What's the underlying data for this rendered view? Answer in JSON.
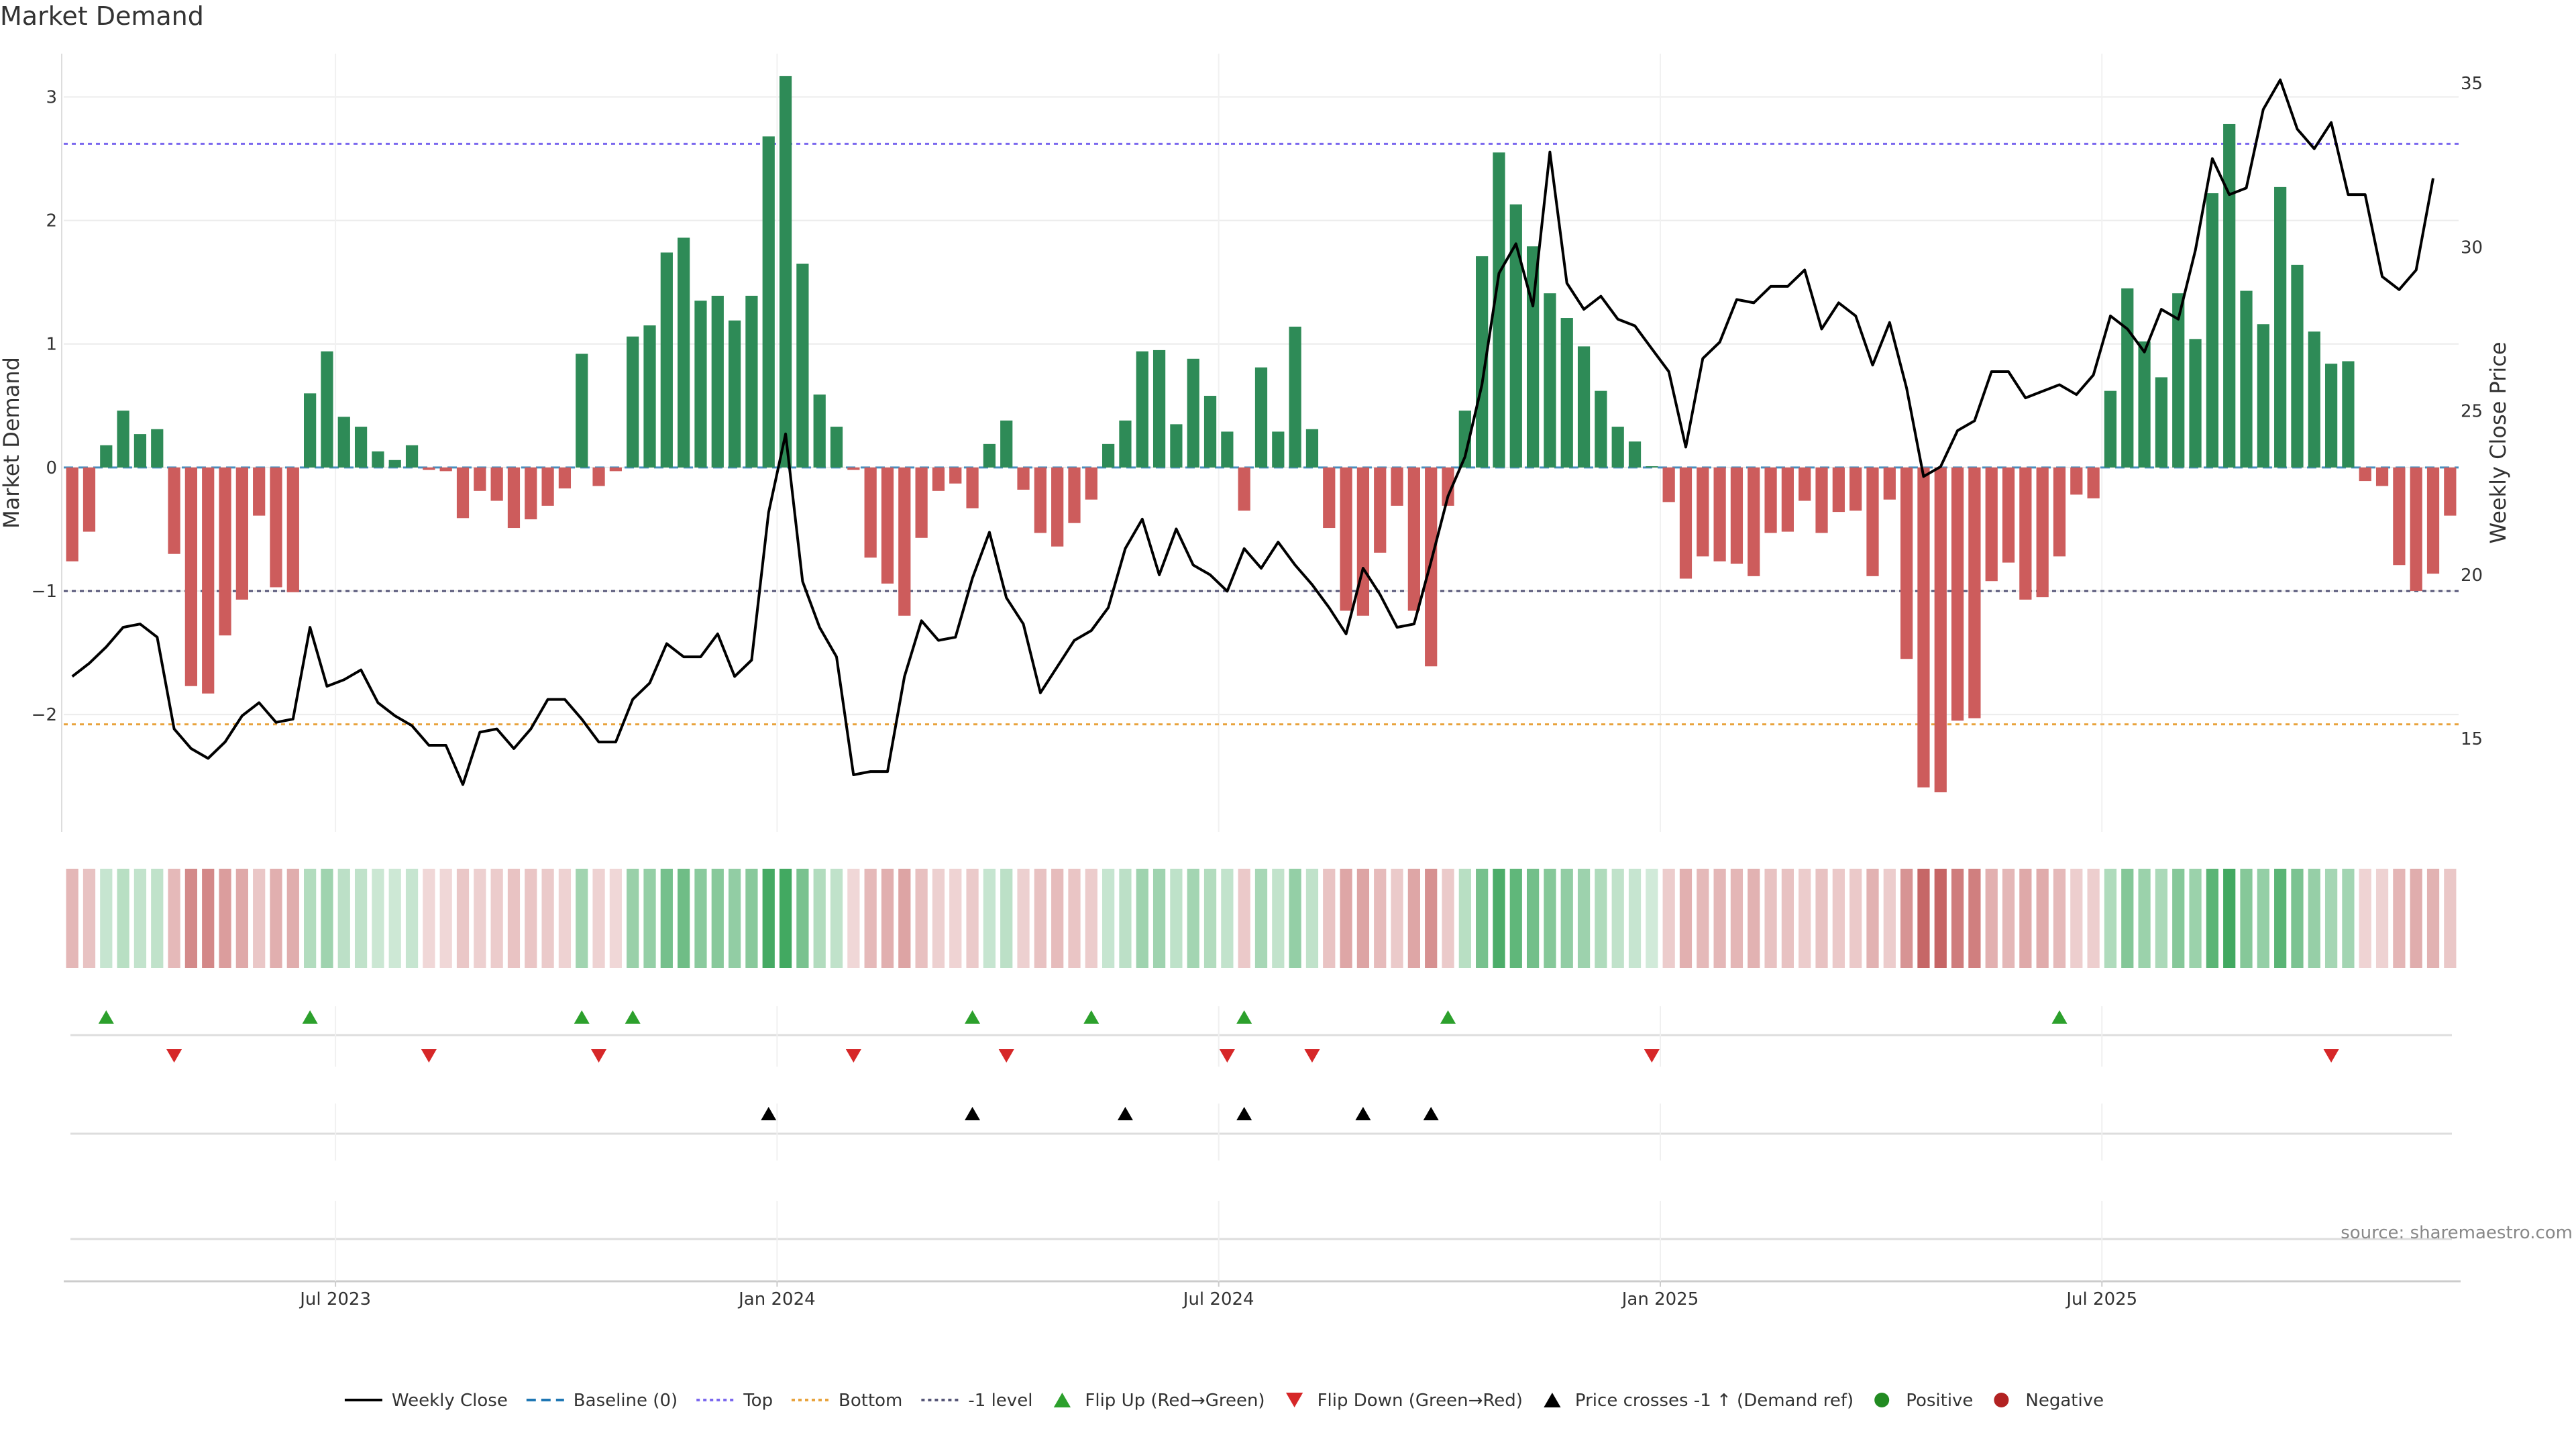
{
  "title": "Market Demand",
  "source": "source: sharemaestro.com",
  "chart_data": {
    "type": "bar",
    "title": "Market Demand",
    "ylabel_left": "Market Demand",
    "ylabel_right": "Weekly Close Price",
    "ylim_left": [
      -2.95,
      3.35
    ],
    "ylim_right": [
      12.16,
      35.9
    ],
    "yticks_left": [
      3,
      2,
      1,
      0,
      -1,
      -2
    ],
    "ytick_labels_left": [
      "3",
      "2",
      "1",
      "0",
      "−1",
      "−2"
    ],
    "yticks_right": [
      35,
      30,
      25,
      20,
      15
    ],
    "ytick_labels_right": [
      "35",
      "30",
      "25",
      "20",
      "15"
    ],
    "x_ticks": [
      {
        "label": "Jul 2023",
        "week": 16
      },
      {
        "label": "Jan 2024",
        "week": 42
      },
      {
        "label": "Jul 2024",
        "week": 68
      },
      {
        "label": "Jan 2025",
        "week": 94
      },
      {
        "label": "Jul 2025",
        "week": 120
      }
    ],
    "reference_lines": {
      "top": 2.62,
      "bottom": -2.08,
      "minus_one": -1.0,
      "baseline": 0
    },
    "colors": {
      "positive": "#2e8b57",
      "negative": "#cd5c5c",
      "price": "#000000",
      "top": "#7b68ee",
      "bottom": "#e8a33d",
      "minus_one": "#555577",
      "flip_up": "#2ca02c",
      "flip_down": "#d62728",
      "cross": "#000000",
      "positive_legend": "#228b22",
      "negative_legend": "#b22222",
      "baseline": "#1f77b4"
    },
    "demand": [
      -0.76,
      -0.52,
      0.18,
      0.46,
      0.27,
      0.31,
      -0.7,
      -1.77,
      -1.83,
      -1.36,
      -1.07,
      -0.39,
      -0.97,
      -1.01,
      0.6,
      0.94,
      0.41,
      0.33,
      0.13,
      0.06,
      0.18,
      -0.02,
      -0.03,
      -0.41,
      -0.19,
      -0.27,
      -0.49,
      -0.42,
      -0.31,
      -0.17,
      0.92,
      -0.15,
      -0.03,
      1.06,
      1.15,
      1.74,
      1.86,
      1.35,
      1.39,
      1.19,
      1.39,
      2.68,
      3.17,
      1.65,
      0.59,
      0.33,
      -0.02,
      -0.73,
      -0.94,
      -1.2,
      -0.57,
      -0.19,
      -0.13,
      -0.33,
      0.19,
      0.38,
      -0.18,
      -0.53,
      -0.64,
      -0.45,
      -0.26,
      0.19,
      0.38,
      0.94,
      0.95,
      0.35,
      0.88,
      0.58,
      0.29,
      -0.35,
      0.81,
      0.29,
      1.14,
      0.31,
      -0.49,
      -1.16,
      -1.2,
      -0.69,
      -0.31,
      -1.16,
      -1.61,
      -0.31,
      0.46,
      1.71,
      2.55,
      2.13,
      1.79,
      1.41,
      1.21,
      0.98,
      0.62,
      0.33,
      0.21,
      0.01,
      -0.28,
      -0.9,
      -0.72,
      -0.76,
      -0.78,
      -0.88,
      -0.53,
      -0.52,
      -0.27,
      -0.53,
      -0.36,
      -0.35,
      -0.88,
      -0.26,
      -1.55,
      -2.59,
      -2.63,
      -2.05,
      -2.03,
      -0.92,
      -0.77,
      -1.07,
      -1.05,
      -0.72,
      -0.22,
      -0.25,
      0.62,
      1.45,
      1.02,
      0.73,
      1.41,
      1.04,
      2.22,
      2.78,
      1.43,
      1.16,
      2.27,
      1.64,
      1.1,
      0.84,
      0.86,
      -0.11,
      -0.15,
      -0.79,
      -1.0,
      -0.86,
      -0.39
    ],
    "price": [
      16.9,
      17.3,
      17.8,
      18.4,
      18.5,
      18.1,
      15.3,
      14.7,
      14.4,
      14.9,
      15.7,
      16.1,
      15.5,
      15.6,
      18.4,
      16.6,
      16.8,
      17.1,
      16.1,
      15.7,
      15.4,
      14.8,
      14.8,
      13.6,
      15.2,
      15.3,
      14.7,
      15.3,
      16.2,
      16.2,
      15.6,
      14.9,
      14.9,
      16.2,
      16.7,
      17.9,
      17.5,
      17.5,
      18.2,
      16.9,
      17.4,
      21.9,
      24.3,
      19.8,
      18.4,
      17.5,
      13.9,
      14.0,
      14.0,
      16.9,
      18.6,
      18.0,
      18.1,
      19.9,
      21.3,
      19.3,
      18.5,
      16.4,
      17.2,
      18.0,
      18.3,
      19.0,
      20.8,
      21.7,
      20.0,
      21.4,
      20.3,
      20.0,
      19.5,
      20.8,
      20.2,
      21.0,
      20.3,
      19.7,
      19.0,
      18.2,
      20.2,
      19.4,
      18.4,
      18.5,
      20.4,
      22.4,
      23.6,
      25.8,
      29.2,
      30.1,
      28.2,
      32.9,
      28.9,
      28.1,
      28.5,
      27.8,
      27.6,
      26.9,
      26.2,
      23.9,
      26.6,
      27.1,
      28.4,
      28.3,
      28.8,
      28.8,
      29.3,
      27.5,
      28.3,
      27.9,
      26.4,
      27.7,
      25.7,
      23.0,
      23.3,
      24.4,
      24.7,
      26.2,
      26.2,
      25.4,
      25.6,
      25.8,
      25.5,
      26.1,
      27.9,
      27.5,
      26.8,
      28.1,
      27.8,
      29.9,
      32.7,
      31.6,
      31.8,
      34.2,
      35.1,
      33.6,
      33.0,
      33.8,
      31.6,
      31.6,
      29.1,
      28.7,
      29.3,
      32.1
    ],
    "flip_up_weeks": [
      2,
      14,
      30,
      33,
      53,
      60,
      69,
      81,
      117
    ],
    "flip_down_weeks": [
      6,
      21,
      31,
      46,
      55,
      68,
      73,
      93,
      133
    ],
    "price_cross_weeks": [
      41,
      53,
      62,
      69,
      76,
      80
    ],
    "legend": [
      {
        "label": "Weekly Close",
        "kind": "line",
        "color_key": "price"
      },
      {
        "label": "Baseline (0)",
        "kind": "dash",
        "color_key": "baseline"
      },
      {
        "label": "Top",
        "kind": "dot",
        "color_key": "top"
      },
      {
        "label": "Bottom",
        "kind": "dot",
        "color_key": "bottom"
      },
      {
        "label": "-1 level",
        "kind": "dot",
        "color_key": "minus_one"
      },
      {
        "label": "Flip Up (Red→Green)",
        "kind": "tri-up",
        "color_key": "flip_up"
      },
      {
        "label": "Flip Down (Green→Red)",
        "kind": "tri-down",
        "color_key": "flip_down"
      },
      {
        "label": "Price crosses -1 ↑ (Demand ref)",
        "kind": "tri-up",
        "color_key": "cross"
      },
      {
        "label": "Positive",
        "kind": "circle",
        "color_key": "positive_legend"
      },
      {
        "label": "Negative",
        "kind": "circle",
        "color_key": "negative_legend"
      }
    ]
  }
}
